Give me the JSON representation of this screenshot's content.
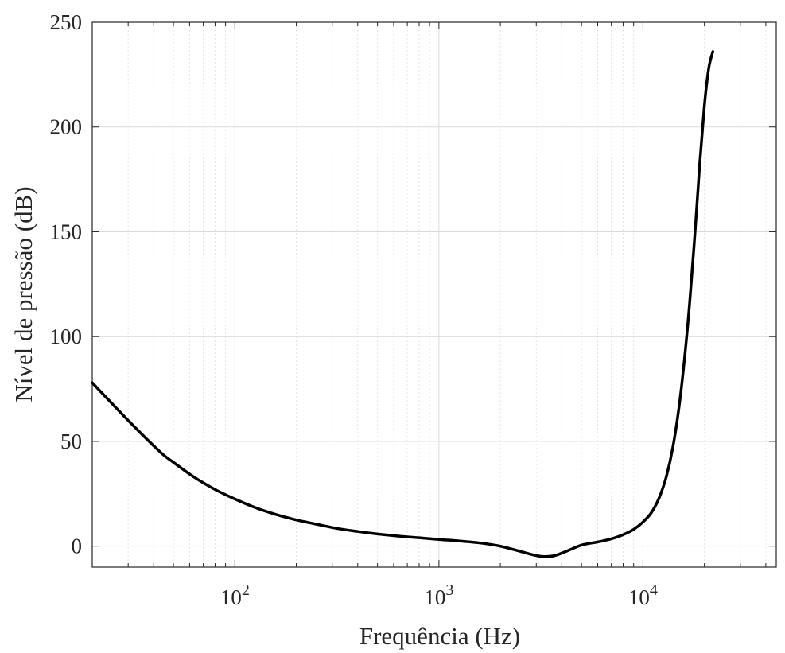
{
  "chart_data": {
    "type": "line",
    "xlabel": "Frequência (Hz)",
    "ylabel": "Nível de pressão (dB)",
    "xscale": "log",
    "xlim": [
      20,
      45000
    ],
    "ylim": [
      -10,
      250
    ],
    "grid": true,
    "minor_grid": true,
    "xticks": [
      100,
      1000,
      10000
    ],
    "xtick_labels": [
      {
        "base": "10",
        "exp": "2"
      },
      {
        "base": "10",
        "exp": "3"
      },
      {
        "base": "10",
        "exp": "4"
      }
    ],
    "yticks": [
      0,
      50,
      100,
      150,
      200,
      250
    ],
    "ytick_labels": [
      "0",
      "50",
      "100",
      "150",
      "200",
      "250"
    ],
    "series": [
      {
        "color": "#000000",
        "x": [
          20,
          30,
          43,
          50,
          63,
          80,
          100,
          125,
          160,
          200,
          250,
          315,
          400,
          500,
          630,
          800,
          1000,
          1250,
          1600,
          2000,
          2500,
          3000,
          3300,
          3700,
          4200,
          5000,
          6000,
          7000,
          8000,
          9000,
          10000,
          11000,
          12000,
          13000,
          14000,
          15000,
          16000,
          17000,
          18000,
          19000,
          20000,
          21000,
          22000
        ],
        "y": [
          78,
          60,
          45,
          40,
          33,
          27,
          22.5,
          18.5,
          15,
          12.5,
          10.5,
          8.5,
          7,
          5.8,
          4.8,
          4,
          3.2,
          2.5,
          1.5,
          0,
          -2.5,
          -4.5,
          -5,
          -4.5,
          -2.5,
          0.5,
          2,
          3.5,
          5.5,
          8,
          11.5,
          16,
          23,
          33,
          47,
          66,
          90,
          118,
          150,
          183,
          210,
          228,
          236
        ]
      }
    ]
  }
}
